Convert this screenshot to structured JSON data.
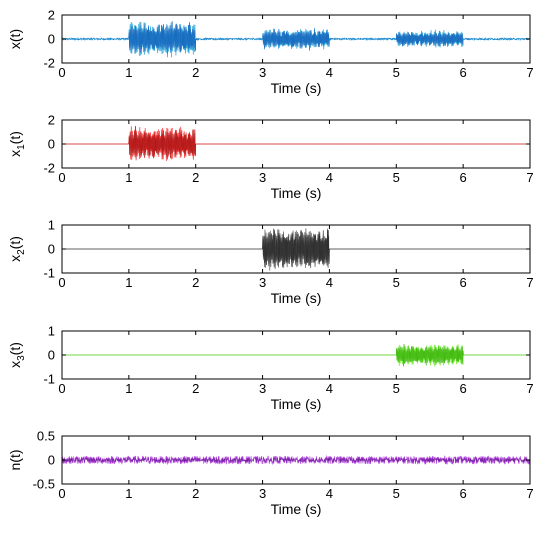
{
  "chart_data": [
    {
      "type": "line",
      "ylabel": "x(t)",
      "ylabel_sub": "",
      "xlabel": "Time (s)",
      "xlim": [
        0,
        7
      ],
      "ylim": [
        -2,
        2
      ],
      "xticks": [
        "0",
        "1",
        "2",
        "3",
        "4",
        "5",
        "6",
        "7"
      ],
      "yticks": [
        "-2",
        "0",
        "2"
      ],
      "series": [
        {
          "color": "#1f9fd8",
          "secondary_color": "#1a3fa8",
          "noise": 0.07,
          "bursts": [
            {
              "start": 1,
              "end": 2,
              "amplitude": 1.6
            },
            {
              "start": 3,
              "end": 4,
              "amplitude": 0.95
            },
            {
              "start": 5,
              "end": 6,
              "amplitude": 0.75
            }
          ]
        }
      ]
    },
    {
      "type": "line",
      "ylabel": "x",
      "ylabel_sub": "1",
      "ylabel_suffix": "(t)",
      "xlabel": "Time (s)",
      "xlim": [
        0,
        7
      ],
      "ylim": [
        -2,
        2
      ],
      "xticks": [
        "0",
        "1",
        "2",
        "3",
        "4",
        "5",
        "6",
        "7"
      ],
      "yticks": [
        "-2",
        "0",
        "2"
      ],
      "series": [
        {
          "color": "#ff2a2a",
          "secondary_color": "#6b1010",
          "noise": 0,
          "bursts": [
            {
              "start": 1,
              "end": 2,
              "amplitude": 1.55
            }
          ]
        }
      ]
    },
    {
      "type": "line",
      "ylabel": "x",
      "ylabel_sub": "2",
      "ylabel_suffix": "(t)",
      "xlabel": "Time (s)",
      "xlim": [
        0,
        7
      ],
      "ylim": [
        -1,
        1
      ],
      "xticks": [
        "0",
        "1",
        "2",
        "3",
        "4",
        "5",
        "6",
        "7"
      ],
      "yticks": [
        "-1",
        "0",
        "1"
      ],
      "series": [
        {
          "color": "#555555",
          "secondary_color": "#111111",
          "noise": 0,
          "bursts": [
            {
              "start": 3,
              "end": 4,
              "amplitude": 0.98
            }
          ]
        }
      ]
    },
    {
      "type": "line",
      "ylabel": "x",
      "ylabel_sub": "3",
      "ylabel_suffix": "(t)",
      "xlabel": "Time (s)",
      "xlim": [
        0,
        7
      ],
      "ylim": [
        -1,
        1
      ],
      "xticks": [
        "0",
        "1",
        "2",
        "3",
        "4",
        "5",
        "6",
        "7"
      ],
      "yticks": [
        "-1",
        "0",
        "1"
      ],
      "series": [
        {
          "color": "#66ee22",
          "secondary_color": "#2a8a0a",
          "noise": 0,
          "bursts": [
            {
              "start": 5,
              "end": 6,
              "amplitude": 0.5
            }
          ]
        }
      ]
    },
    {
      "type": "line",
      "ylabel": "n(t)",
      "ylabel_sub": "",
      "xlabel": "Time (s)",
      "xlim": [
        0,
        7
      ],
      "ylim": [
        -0.5,
        0.5
      ],
      "xticks": [
        "0",
        "1",
        "2",
        "3",
        "4",
        "5",
        "6",
        "7"
      ],
      "yticks": [
        "-0.5",
        "0",
        "0.5"
      ],
      "series": [
        {
          "color": "#b040e0",
          "secondary_color": "#5a1a7a",
          "noise": 0.08,
          "bursts": []
        }
      ]
    }
  ]
}
